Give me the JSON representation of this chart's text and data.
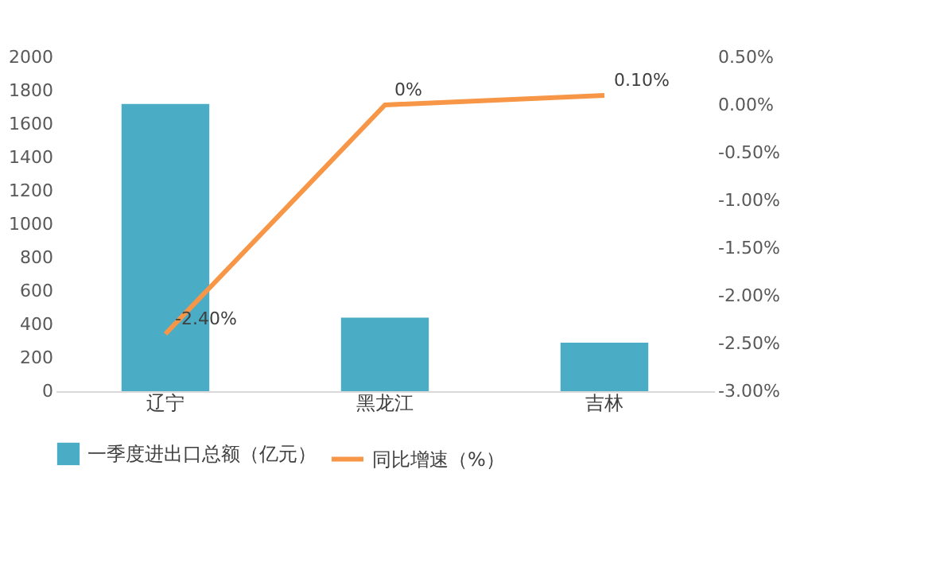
{
  "chart_data": {
    "type": "bar",
    "categories": [
      "辽宁",
      "黑龙江",
      "吉林"
    ],
    "series": [
      {
        "name": "一季度进出口总额（亿元）",
        "color": "#4bacc6",
        "values": [
          1720,
          440,
          290
        ]
      },
      {
        "name": "同比增速（%）",
        "type": "line",
        "axis": "y2",
        "color": "#f79646",
        "values": [
          -2.4,
          0,
          0.1
        ],
        "value_labels": [
          "-2.40%",
          "0%",
          "0.10%"
        ]
      }
    ],
    "ylim": [
      0,
      2000
    ],
    "yticks": [
      0,
      200,
      400,
      600,
      800,
      1000,
      1200,
      1400,
      1600,
      1800,
      2000
    ],
    "y2lim": [
      -3,
      0.5
    ],
    "y2ticks": [
      {
        "value": -3,
        "label": "-3.00%"
      },
      {
        "value": -2.5,
        "label": "-2.50%"
      },
      {
        "value": -2,
        "label": "-2.00%"
      },
      {
        "value": -1.5,
        "label": "-1.50%"
      },
      {
        "value": -1,
        "label": "-1.00%"
      },
      {
        "value": -0.5,
        "label": "-0.50%"
      },
      {
        "value": 0,
        "label": "0.00%"
      },
      {
        "value": 0.5,
        "label": "0.50%"
      }
    ],
    "grid": false,
    "legend": "bottom",
    "marker": "none",
    "line_style": "solid"
  }
}
